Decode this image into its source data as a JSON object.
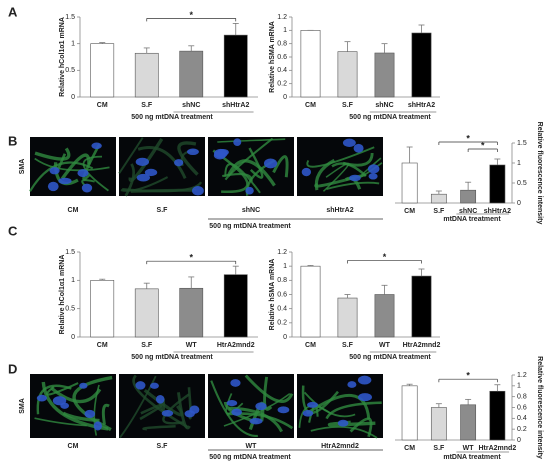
{
  "panel_labels": [
    "A",
    "B",
    "C",
    "D"
  ],
  "images": [
    {
      "stain": "SMA",
      "labels": [
        "CM",
        "S.F",
        "shNC",
        "shHtrA2"
      ],
      "group_label": "500 ng mtDNA treatment"
    },
    {
      "stain": "SMA",
      "labels": [
        "CM",
        "S.F",
        "WT",
        "HtrA2mnd2"
      ],
      "group_label": "500 ng mtDNA treatment"
    }
  ],
  "chart_data": [
    {
      "type": "bar",
      "y_label": "Relative hCol1α1 mRNA",
      "categories": [
        "CM",
        "S.F",
        "shNC",
        "shHtrA2"
      ],
      "values": [
        1.0,
        0.82,
        0.86,
        1.16
      ],
      "errors": [
        0.02,
        0.1,
        0.1,
        0.22
      ],
      "colors": [
        "#ffffff",
        "#d9d9d9",
        "#8c8c8c",
        "#000000"
      ],
      "ylim": [
        0,
        1.5
      ],
      "yticks": [
        0,
        0.5,
        1,
        1.5
      ],
      "group_label": "500 ng mtDNA treatment",
      "annotations": [
        {
          "text": "*",
          "from": "S.F",
          "to": "shHtrA2"
        }
      ]
    },
    {
      "type": "bar",
      "y_label": "Relative hSMA mRNA",
      "categories": [
        "CM",
        "S.F",
        "shNC",
        "shHtrA2"
      ],
      "values": [
        1.0,
        0.68,
        0.66,
        0.96
      ],
      "errors": [
        0,
        0.15,
        0.14,
        0.12
      ],
      "colors": [
        "#ffffff",
        "#d9d9d9",
        "#8c8c8c",
        "#000000"
      ],
      "ylim": [
        0,
        1.2
      ],
      "yticks": [
        0,
        0.2,
        0.4,
        0.6,
        0.8,
        1,
        1.2
      ],
      "group_label": "500 ng mtDNA treatment",
      "annotations": []
    },
    {
      "type": "bar",
      "y_label": "Relative fluorescence intensity",
      "categories": [
        "CM",
        "S.F",
        "shNC",
        "shHtrA2"
      ],
      "values": [
        1.0,
        0.22,
        0.32,
        0.95
      ],
      "errors": [
        0.4,
        0.08,
        0.2,
        0.15
      ],
      "colors": [
        "#ffffff",
        "#d9d9d9",
        "#8c8c8c",
        "#000000"
      ],
      "ylim": [
        0,
        1.5
      ],
      "yticks": [
        0,
        0.5,
        1,
        1.5
      ],
      "group_label": "mtDNA treatment",
      "annotations": [
        {
          "text": "*",
          "from": "S.F",
          "to": "shHtrA2"
        },
        {
          "text": "*",
          "from": "shNC",
          "to": "shHtrA2"
        }
      ]
    },
    {
      "type": "bar",
      "y_label": "Relative hCol1α1 mRNA",
      "categories": [
        "CM",
        "S.F",
        "WT",
        "HtrA2mnd2"
      ],
      "values": [
        1.0,
        0.85,
        0.86,
        1.1
      ],
      "errors": [
        0.02,
        0.1,
        0.2,
        0.15
      ],
      "colors": [
        "#ffffff",
        "#d9d9d9",
        "#8c8c8c",
        "#000000"
      ],
      "ylim": [
        0,
        1.5
      ],
      "yticks": [
        0,
        0.5,
        1,
        1.5
      ],
      "group_label": "500 ng mtDNA treatment",
      "annotations": [
        {
          "text": "*",
          "from": "S.F",
          "to": "HtrA2mnd2"
        }
      ]
    },
    {
      "type": "bar",
      "y_label": "Relative hSMA mRNA",
      "categories": [
        "CM",
        "S.F",
        "WT",
        "HtrA2mnd2"
      ],
      "values": [
        1.0,
        0.55,
        0.6,
        0.86
      ],
      "errors": [
        0.01,
        0.05,
        0.13,
        0.1
      ],
      "colors": [
        "#ffffff",
        "#d9d9d9",
        "#8c8c8c",
        "#000000"
      ],
      "ylim": [
        0,
        1.2
      ],
      "yticks": [
        0,
        0.2,
        0.4,
        0.6,
        0.8,
        1,
        1.2
      ],
      "group_label": "500 ng mtDNA treatment",
      "annotations": [
        {
          "text": "*",
          "from": "S.F",
          "to": "HtrA2mnd2"
        }
      ]
    },
    {
      "type": "bar",
      "y_label": "Relative fluorescence intensity",
      "categories": [
        "CM",
        "S.F",
        "WT",
        "HtrA2mnd2"
      ],
      "values": [
        1.0,
        0.6,
        0.65,
        0.9
      ],
      "errors": [
        0.03,
        0.07,
        0.1,
        0.12
      ],
      "colors": [
        "#ffffff",
        "#d9d9d9",
        "#8c8c8c",
        "#000000"
      ],
      "ylim": [
        0,
        1.2
      ],
      "yticks": [
        0,
        0.2,
        0.4,
        0.6,
        0.8,
        1,
        1.2
      ],
      "group_label": "mtDNA treatment",
      "annotations": [
        {
          "text": "*",
          "from": "S.F",
          "to": "HtrA2mnd2"
        }
      ]
    }
  ]
}
